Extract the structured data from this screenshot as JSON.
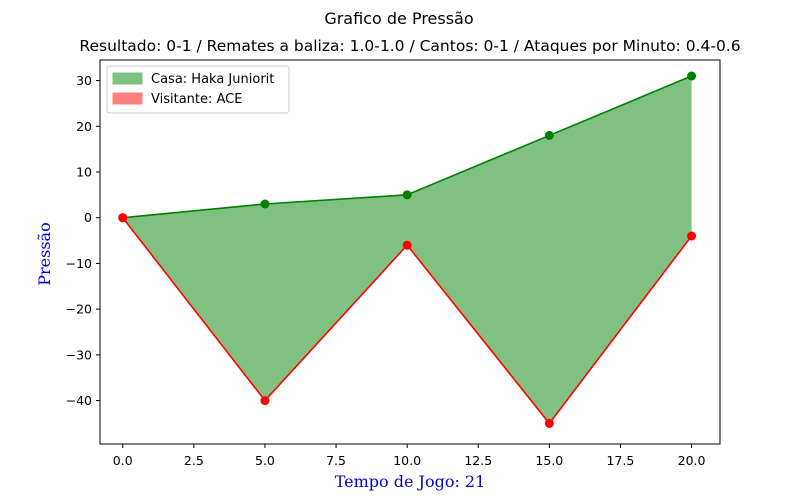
{
  "chart_data": {
    "type": "area",
    "title": "Grafico de Pressão",
    "subtitle": "Resultado: 0-1 / Remates a baliza: 1.0-1.0 / Cantos: 0-1 / Ataques por Minuto: 0.4-0.6",
    "xlabel": "Tempo de Jogo: 21",
    "ylabel": "Pressão",
    "x": [
      0,
      5,
      10,
      15,
      20
    ],
    "xlim": [
      -0.8,
      21.0
    ],
    "ylim": [
      -49.5,
      34.5
    ],
    "xticks": [
      0.0,
      2.5,
      5.0,
      7.5,
      10.0,
      12.5,
      15.0,
      17.5,
      20.0
    ],
    "xtick_labels": [
      "0.0",
      "2.5",
      "5.0",
      "7.5",
      "10.0",
      "12.5",
      "15.0",
      "17.5",
      "20.0"
    ],
    "yticks": [
      30,
      20,
      10,
      0,
      -10,
      -20,
      -30,
      -40
    ],
    "ytick_labels": [
      "30",
      "20",
      "10",
      "0",
      "−10",
      "−20",
      "−30",
      "−40"
    ],
    "grid": false,
    "legend_position": "top-left",
    "series": [
      {
        "name": "Casa: Haka Juniorit",
        "values": [
          0,
          3,
          5,
          18,
          31
        ],
        "line_color": "#008000",
        "fill_color": "#80c080"
      },
      {
        "name": "Visitante: ACE",
        "values": [
          0,
          -40,
          -6,
          -45,
          -4
        ],
        "line_color": "#ff0000",
        "fill_color": "#ff7f7f"
      }
    ],
    "axis_label_color": "#0000cc"
  }
}
